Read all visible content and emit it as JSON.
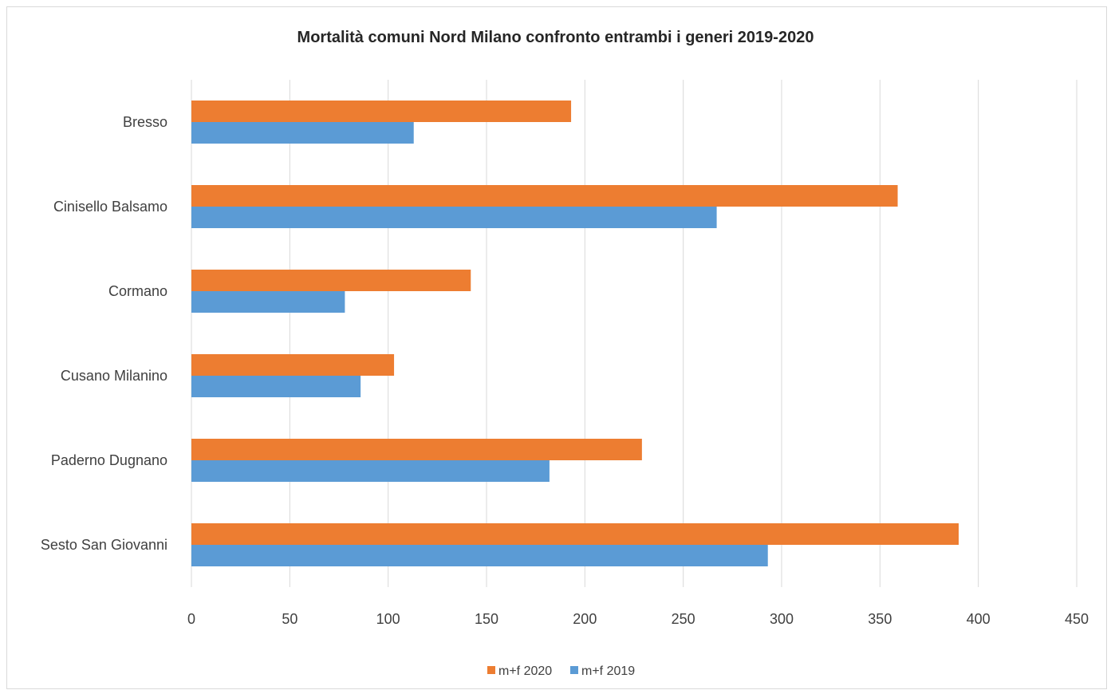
{
  "chart_data": {
    "type": "bar",
    "orientation": "horizontal",
    "title": "Mortalità comuni Nord Milano confronto entrambi i generi 2019-2020",
    "categories": [
      "Bresso",
      "Cinisello Balsamo",
      "Cormano",
      "Cusano Milanino",
      "Paderno Dugnano",
      "Sesto San Giovanni"
    ],
    "series": [
      {
        "name": "m+f 2020",
        "color": "#ed7d31",
        "values": [
          193,
          359,
          142,
          103,
          229,
          390
        ]
      },
      {
        "name": "m+f 2019",
        "color": "#5b9bd5",
        "values": [
          113,
          267,
          78,
          86,
          182,
          293
        ]
      }
    ],
    "xlim": [
      0,
      450
    ],
    "xticks": [
      0,
      50,
      100,
      150,
      200,
      250,
      300,
      350,
      400,
      450
    ],
    "grid": true,
    "legend_position": "bottom"
  }
}
